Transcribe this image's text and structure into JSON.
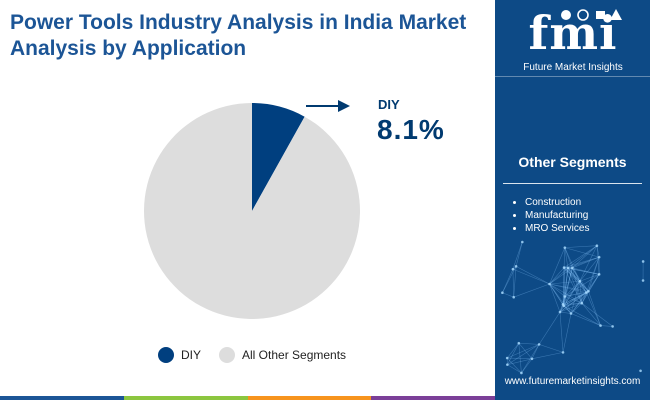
{
  "header": {
    "title_line1": "Power Tools Industry Analysis in India Market",
    "title_line2": "Analysis by Application"
  },
  "chart_data": {
    "type": "pie",
    "title": "Power Tools Industry Analysis in India Market Analysis by Application",
    "categories": [
      "DIY",
      "All Other Segments"
    ],
    "values": [
      8.1,
      91.9
    ],
    "unit": "%",
    "colors": [
      "#003f7f",
      "#dddddd"
    ],
    "callout": {
      "label": "DIY",
      "value": "8.1%"
    },
    "legend": {
      "position": "bottom",
      "items": [
        {
          "label": "DIY",
          "color": "#003f7f"
        },
        {
          "label": "All Other Segments",
          "color": "#dddddd"
        }
      ]
    }
  },
  "sidebar": {
    "logo_text": "fmi",
    "logo_subtitle": "Future Market Insights",
    "logo_icons": [
      "shopping-icon",
      "globe-icon",
      "industry-icon",
      "science-icon"
    ],
    "segments_title": "Other Segments",
    "segments": [
      "Construction",
      "Manufacturing",
      "MRO Services"
    ],
    "website": "www.futuremarketinsights.com",
    "background": "#0d4a86"
  },
  "footer": {
    "bar_colors": [
      "#1c5596",
      "#8cc63f",
      "#f7941d",
      "#7b3f98"
    ]
  }
}
